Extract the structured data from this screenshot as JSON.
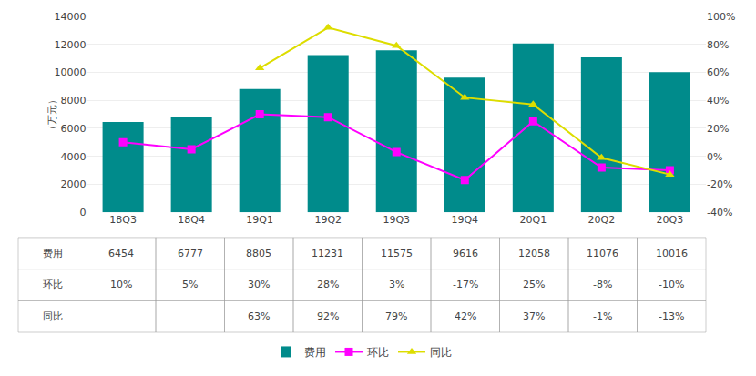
{
  "chart_data": {
    "type": "bar",
    "categories": [
      "18Q3",
      "18Q4",
      "19Q1",
      "19Q2",
      "19Q3",
      "19Q4",
      "20Q1",
      "20Q2",
      "20Q3"
    ],
    "series": [
      {
        "name": "费用",
        "type": "bar",
        "color": "#008B8B",
        "values": [
          6454,
          6777,
          8805,
          11231,
          11575,
          9616,
          12058,
          11076,
          10016
        ],
        "value_labels": [
          "6454",
          "6777",
          "8805",
          "11231",
          "11575",
          "9616",
          "12058",
          "11076",
          "10016"
        ]
      },
      {
        "name": "环比",
        "type": "line",
        "axis": "y2",
        "color": "#FF00FF",
        "marker": "square",
        "values": [
          0.1,
          0.05,
          0.3,
          0.28,
          0.03,
          -0.17,
          0.25,
          -0.08,
          -0.1
        ],
        "value_labels": [
          "10%",
          "5%",
          "30%",
          "28%",
          "3%",
          "-17%",
          "25%",
          "-8%",
          "-10%"
        ]
      },
      {
        "name": "同比",
        "type": "line",
        "axis": "y2",
        "color": "#DDDD00",
        "marker": "triangle-up",
        "values": [
          null,
          null,
          0.63,
          0.92,
          0.79,
          0.42,
          0.37,
          -0.01,
          -0.13
        ],
        "value_labels": [
          null,
          null,
          "63%",
          "92%",
          "79%",
          "42%",
          "37%",
          "-1%",
          "-13%"
        ]
      }
    ],
    "ylabel": "（万元）",
    "ylim": [
      0,
      14000
    ],
    "yticks": [
      0,
      2000,
      4000,
      6000,
      8000,
      10000,
      12000,
      14000
    ],
    "y2lim": [
      -0.4,
      1.0
    ],
    "y2ticks": [
      {
        "value": -0.4,
        "label": "-40%"
      },
      {
        "value": -0.2,
        "label": "-20%"
      },
      {
        "value": 0.0,
        "label": "0%"
      },
      {
        "value": 0.2,
        "label": "20%"
      },
      {
        "value": 0.4,
        "label": "40%"
      },
      {
        "value": 0.6,
        "label": "60%"
      },
      {
        "value": 0.8,
        "label": "80%"
      },
      {
        "value": 1.0,
        "label": "100%"
      }
    ],
    "grid": true,
    "legend": "bottom"
  }
}
